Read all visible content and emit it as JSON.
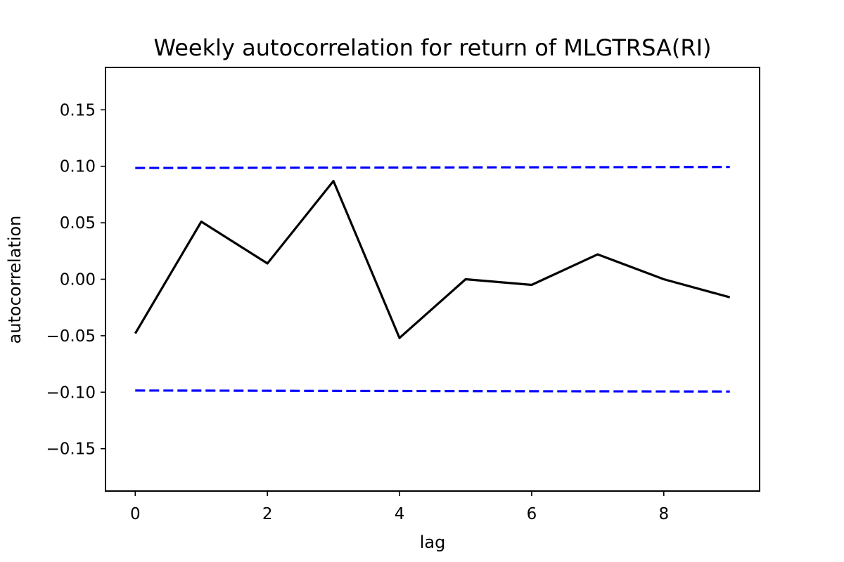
{
  "chart_data": {
    "type": "line",
    "title": "Weekly autocorrelation for  return of MLGTRSA(RI)",
    "xlabel": "lag",
    "ylabel": "autocorrelation",
    "xlim": [
      -0.45,
      9.45
    ],
    "ylim": [
      -0.1875,
      0.1875
    ],
    "xticks": [
      0,
      2,
      4,
      6,
      8
    ],
    "xtick_labels": [
      "0",
      "2",
      "4",
      "6",
      "8"
    ],
    "yticks": [
      0.15,
      0.1,
      0.05,
      0.0,
      -0.05,
      -0.1,
      -0.15
    ],
    "ytick_labels": [
      "0.15",
      "0.10",
      "0.05",
      "0.00",
      "−0.05",
      "−0.10",
      "−0.15"
    ],
    "grid": false,
    "series": [
      {
        "role": "autocorrelation",
        "color": "#000000",
        "style": "solid",
        "x": [
          0,
          1,
          2,
          3,
          4,
          5,
          6,
          7,
          8,
          9
        ],
        "y": [
          -0.048,
          0.051,
          0.014,
          0.087,
          -0.052,
          0.0,
          -0.005,
          0.022,
          0.0,
          -0.016
        ]
      },
      {
        "role": "upper-bound",
        "color": "#0000ff",
        "style": "dashed",
        "x": [
          0,
          1,
          2,
          3,
          4,
          5,
          6,
          7,
          8,
          9
        ],
        "y": [
          0.0985,
          0.0986,
          0.0987,
          0.0988,
          0.0989,
          0.099,
          0.0991,
          0.0992,
          0.0993,
          0.0994
        ]
      },
      {
        "role": "lower-bound",
        "color": "#0000ff",
        "style": "dashed",
        "x": [
          0,
          1,
          2,
          3,
          4,
          5,
          6,
          7,
          8,
          9
        ],
        "y": [
          -0.0985,
          -0.0986,
          -0.0987,
          -0.0988,
          -0.0989,
          -0.099,
          -0.0991,
          -0.0992,
          -0.0993,
          -0.0994
        ]
      }
    ]
  }
}
